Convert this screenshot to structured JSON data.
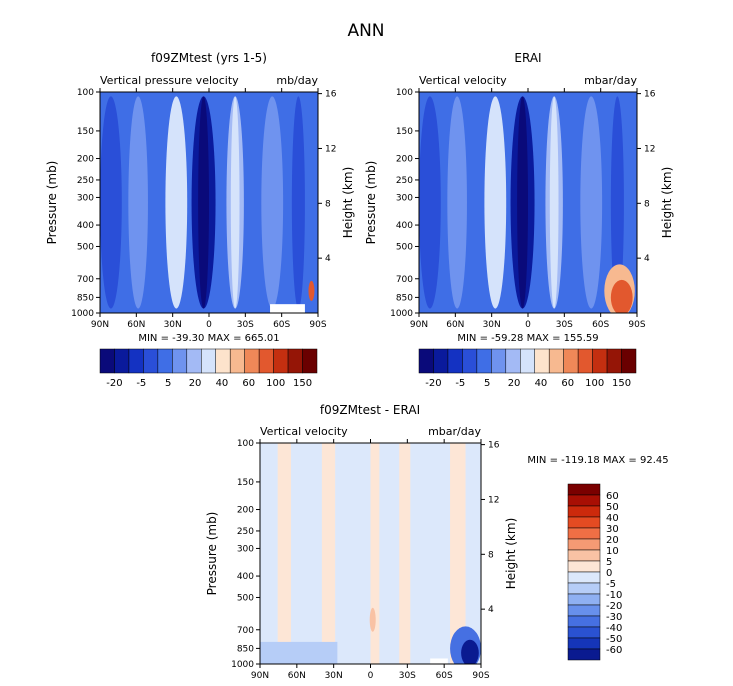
{
  "figure": {
    "title": "ANN"
  },
  "chart_data": [
    {
      "type": "heatmap",
      "id": "model",
      "title": "f09ZMtest (yrs 1-5)",
      "left_label": "Vertical pressure velocity",
      "right_label": "mb/day",
      "ylabel": "Pressure (mb)",
      "ylabel_right": "Height (km)",
      "x_ticks": [
        "90N",
        "60N",
        "30N",
        "0",
        "30S",
        "60S",
        "90S"
      ],
      "y_ticks": [
        "100",
        "150",
        "200",
        "250",
        "300",
        "400",
        "500",
        "700",
        "850",
        "1000"
      ],
      "y_ticks_right": [
        "16",
        "12",
        "8",
        "4"
      ],
      "stats_text": "MIN = -39.30   MAX = 665.01",
      "min": -39.3,
      "max": 665.01,
      "colorbar": {
        "orientation": "horizontal",
        "labels": [
          "-20",
          "-5",
          "5",
          "20",
          "40",
          "60",
          "100",
          "150"
        ],
        "colors": [
          "#0a0a7a",
          "#0a1a9c",
          "#1432c2",
          "#2a4fd8",
          "#3f6ee6",
          "#6f93ef",
          "#a3baf5",
          "#d5e3fb",
          "#fde3cc",
          "#f7b990",
          "#ef8858",
          "#e2582e",
          "#c42f10",
          "#951506",
          "#6a0000"
        ]
      }
    },
    {
      "type": "heatmap",
      "id": "obs",
      "title": "ERAI",
      "left_label": "Vertical velocity",
      "right_label": "mbar/day",
      "ylabel": "Pressure (mb)",
      "ylabel_right": "Height (km)",
      "x_ticks": [
        "90N",
        "60N",
        "30N",
        "0",
        "30S",
        "60S",
        "90S"
      ],
      "y_ticks": [
        "100",
        "150",
        "200",
        "250",
        "300",
        "400",
        "500",
        "700",
        "850",
        "1000"
      ],
      "y_ticks_right": [
        "16",
        "12",
        "8",
        "4"
      ],
      "stats_text": "MIN = -59.28   MAX = 155.59",
      "min": -59.28,
      "max": 155.59,
      "colorbar": {
        "orientation": "horizontal",
        "labels": [
          "-20",
          "-5",
          "5",
          "20",
          "40",
          "60",
          "100",
          "150"
        ],
        "colors": [
          "#0a0a7a",
          "#0a1a9c",
          "#1432c2",
          "#2a4fd8",
          "#3f6ee6",
          "#6f93ef",
          "#a3baf5",
          "#d5e3fb",
          "#fde3cc",
          "#f7b990",
          "#ef8858",
          "#e2582e",
          "#c42f10",
          "#951506",
          "#6a0000"
        ]
      }
    },
    {
      "type": "heatmap",
      "id": "diff",
      "title": "f09ZMtest - ERAI",
      "left_label": "Vertical velocity",
      "right_label": "mbar/day",
      "ylabel": "Pressure (mb)",
      "ylabel_right": "Height (km)",
      "x_ticks": [
        "90N",
        "60N",
        "30N",
        "0",
        "30S",
        "60S",
        "90S"
      ],
      "y_ticks": [
        "100",
        "150",
        "200",
        "250",
        "300",
        "400",
        "500",
        "700",
        "850",
        "1000"
      ],
      "y_ticks_right": [
        "16",
        "12",
        "8",
        "4"
      ],
      "stats_text": "MIN = -119.18   MAX =  92.45",
      "min": -119.18,
      "max": 92.45,
      "colorbar": {
        "orientation": "vertical",
        "labels": [
          "60",
          "50",
          "40",
          "30",
          "20",
          "10",
          "5",
          "0",
          "-5",
          "-10",
          "-20",
          "-30",
          "-40",
          "-50",
          "-60"
        ],
        "colors": [
          "#7a0000",
          "#a80f04",
          "#cc2a0c",
          "#e44b22",
          "#f06f45",
          "#f59a74",
          "#f9c2a4",
          "#fde6d6",
          "#dce8fb",
          "#b6cdf7",
          "#8fb0f2",
          "#6890ec",
          "#4670e2",
          "#2a52d2",
          "#1535b8",
          "#0a1a90"
        ]
      }
    }
  ]
}
